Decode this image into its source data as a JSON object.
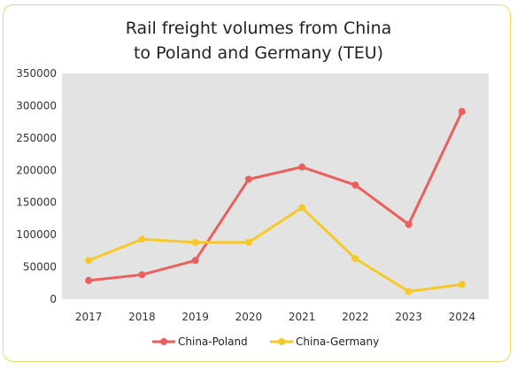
{
  "chart_data": {
    "type": "line",
    "title_line1": "Rail freight volumes from China",
    "title_line2": "to Poland and Germany (TEU)",
    "x": [
      "2017",
      "2018",
      "2019",
      "2020",
      "2021",
      "2022",
      "2023",
      "2024"
    ],
    "series": [
      {
        "name": "China-Poland",
        "color": "#ec5f5f",
        "values": [
          29000,
          38000,
          60000,
          186000,
          205000,
          177000,
          116000,
          291000
        ]
      },
      {
        "name": "China-Germany",
        "color": "#f7c928",
        "values": [
          60000,
          93000,
          88000,
          88000,
          142000,
          63000,
          12000,
          23000
        ]
      }
    ],
    "ylim": [
      0,
      350000
    ],
    "yticks": [
      "0",
      "50000",
      "100000",
      "150000",
      "200000",
      "250000",
      "300000",
      "350000"
    ],
    "plot_background": "#e3e3e3",
    "border_color": "#f3d36a",
    "grid": false,
    "legend_position": "bottom"
  }
}
